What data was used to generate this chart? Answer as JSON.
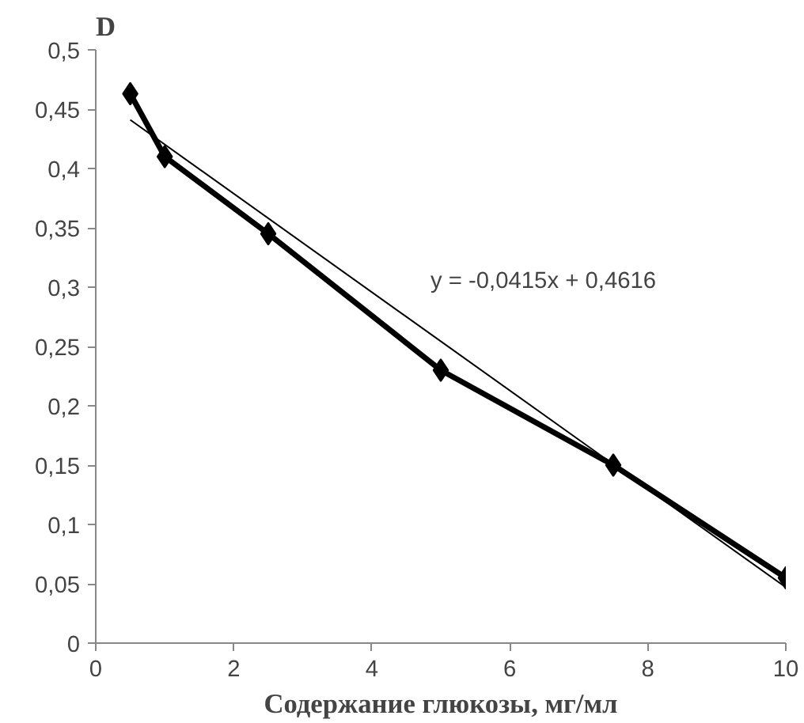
{
  "chart_data": {
    "type": "line",
    "ylabel": "D",
    "xlabel": "Содержание глюкозы, мг/мл",
    "xlim": [
      0,
      10
    ],
    "xticks": [
      0,
      2,
      4,
      6,
      8,
      10
    ],
    "ylim": [
      0,
      0.5
    ],
    "yticks": [
      0,
      {
        "value": 0.05,
        "label": "0,05"
      },
      {
        "value": 0.1,
        "label": "0,1"
      },
      {
        "value": 0.15,
        "label": "0,15"
      },
      {
        "value": 0.2,
        "label": "0,2"
      },
      {
        "value": 0.25,
        "label": "0,25"
      },
      {
        "value": 0.3,
        "label": "0,3"
      },
      {
        "value": 0.35,
        "label": "0,35"
      },
      {
        "value": 0.4,
        "label": "0,4"
      },
      {
        "value": 0.45,
        "label": "0,45"
      },
      {
        "value": 0.5,
        "label": "0,5"
      }
    ],
    "grid": false,
    "series": [
      {
        "color": "#000000",
        "marker": "diamond",
        "x": [
          0.5,
          1,
          2.5,
          5,
          7.5,
          10
        ],
        "values": [
          0.463,
          0.41,
          0.345,
          0.23,
          0.15,
          0.055
        ]
      },
      {
        "color": "#000000",
        "marker": "none",
        "x": [
          0.5,
          10
        ],
        "values": [
          0.441,
          0.047
        ]
      }
    ],
    "annotations": [
      "y = -0,0415x + 0,4616"
    ]
  }
}
